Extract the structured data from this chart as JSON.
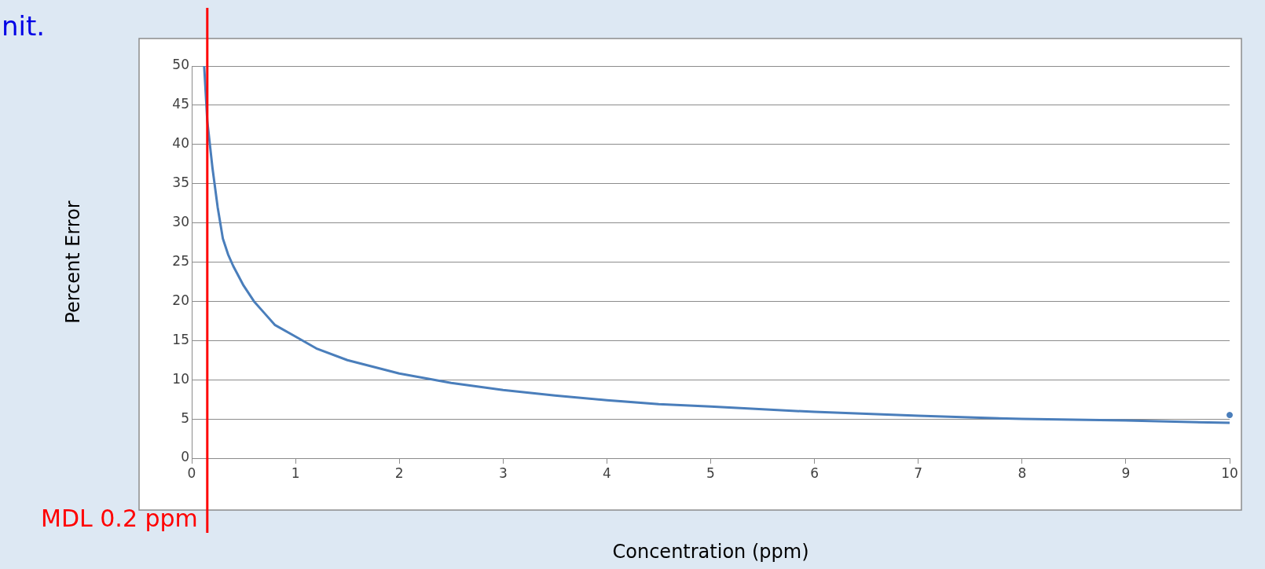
{
  "chart_data": {
    "type": "line",
    "xlabel": "Concentration (ppm)",
    "ylabel": "Percent Error",
    "series": [
      {
        "color": "#4a7ebb",
        "x": [
          0.12,
          0.15,
          0.2,
          0.25,
          0.3,
          0.35,
          0.4,
          0.5,
          0.6,
          0.7,
          0.8,
          1,
          1.2,
          1.5,
          2,
          2.5,
          3,
          3.5,
          4,
          4.5,
          5,
          6,
          7,
          8,
          9,
          10
        ],
        "values": [
          50,
          43,
          37,
          32,
          28,
          26,
          24.5,
          22,
          20,
          18.5,
          17,
          15.5,
          14,
          12.5,
          10.8,
          9.6,
          8.7,
          8,
          7.4,
          6.9,
          6.6,
          5.9,
          5.4,
          5,
          4.8,
          4.5
        ]
      },
      {
        "type": "scatter",
        "color": "#4a7ebb",
        "x": [
          10
        ],
        "values": [
          5.5
        ]
      }
    ],
    "xlim": [
      0,
      10
    ],
    "xticks": [
      0,
      1,
      2,
      3,
      4,
      5,
      6,
      7,
      8,
      9,
      10
    ],
    "ylim": [
      0,
      50
    ],
    "yticks": [
      0,
      5,
      10,
      15,
      20,
      25,
      30,
      35,
      40,
      45,
      50
    ],
    "grid": "y",
    "line_style": "solid",
    "ref_lines": [
      {
        "axis": "x",
        "value": 0.15,
        "label": "MDL 0.2 ppm",
        "color": "#ff0000"
      }
    ],
    "annotations": [
      "nit."
    ]
  }
}
